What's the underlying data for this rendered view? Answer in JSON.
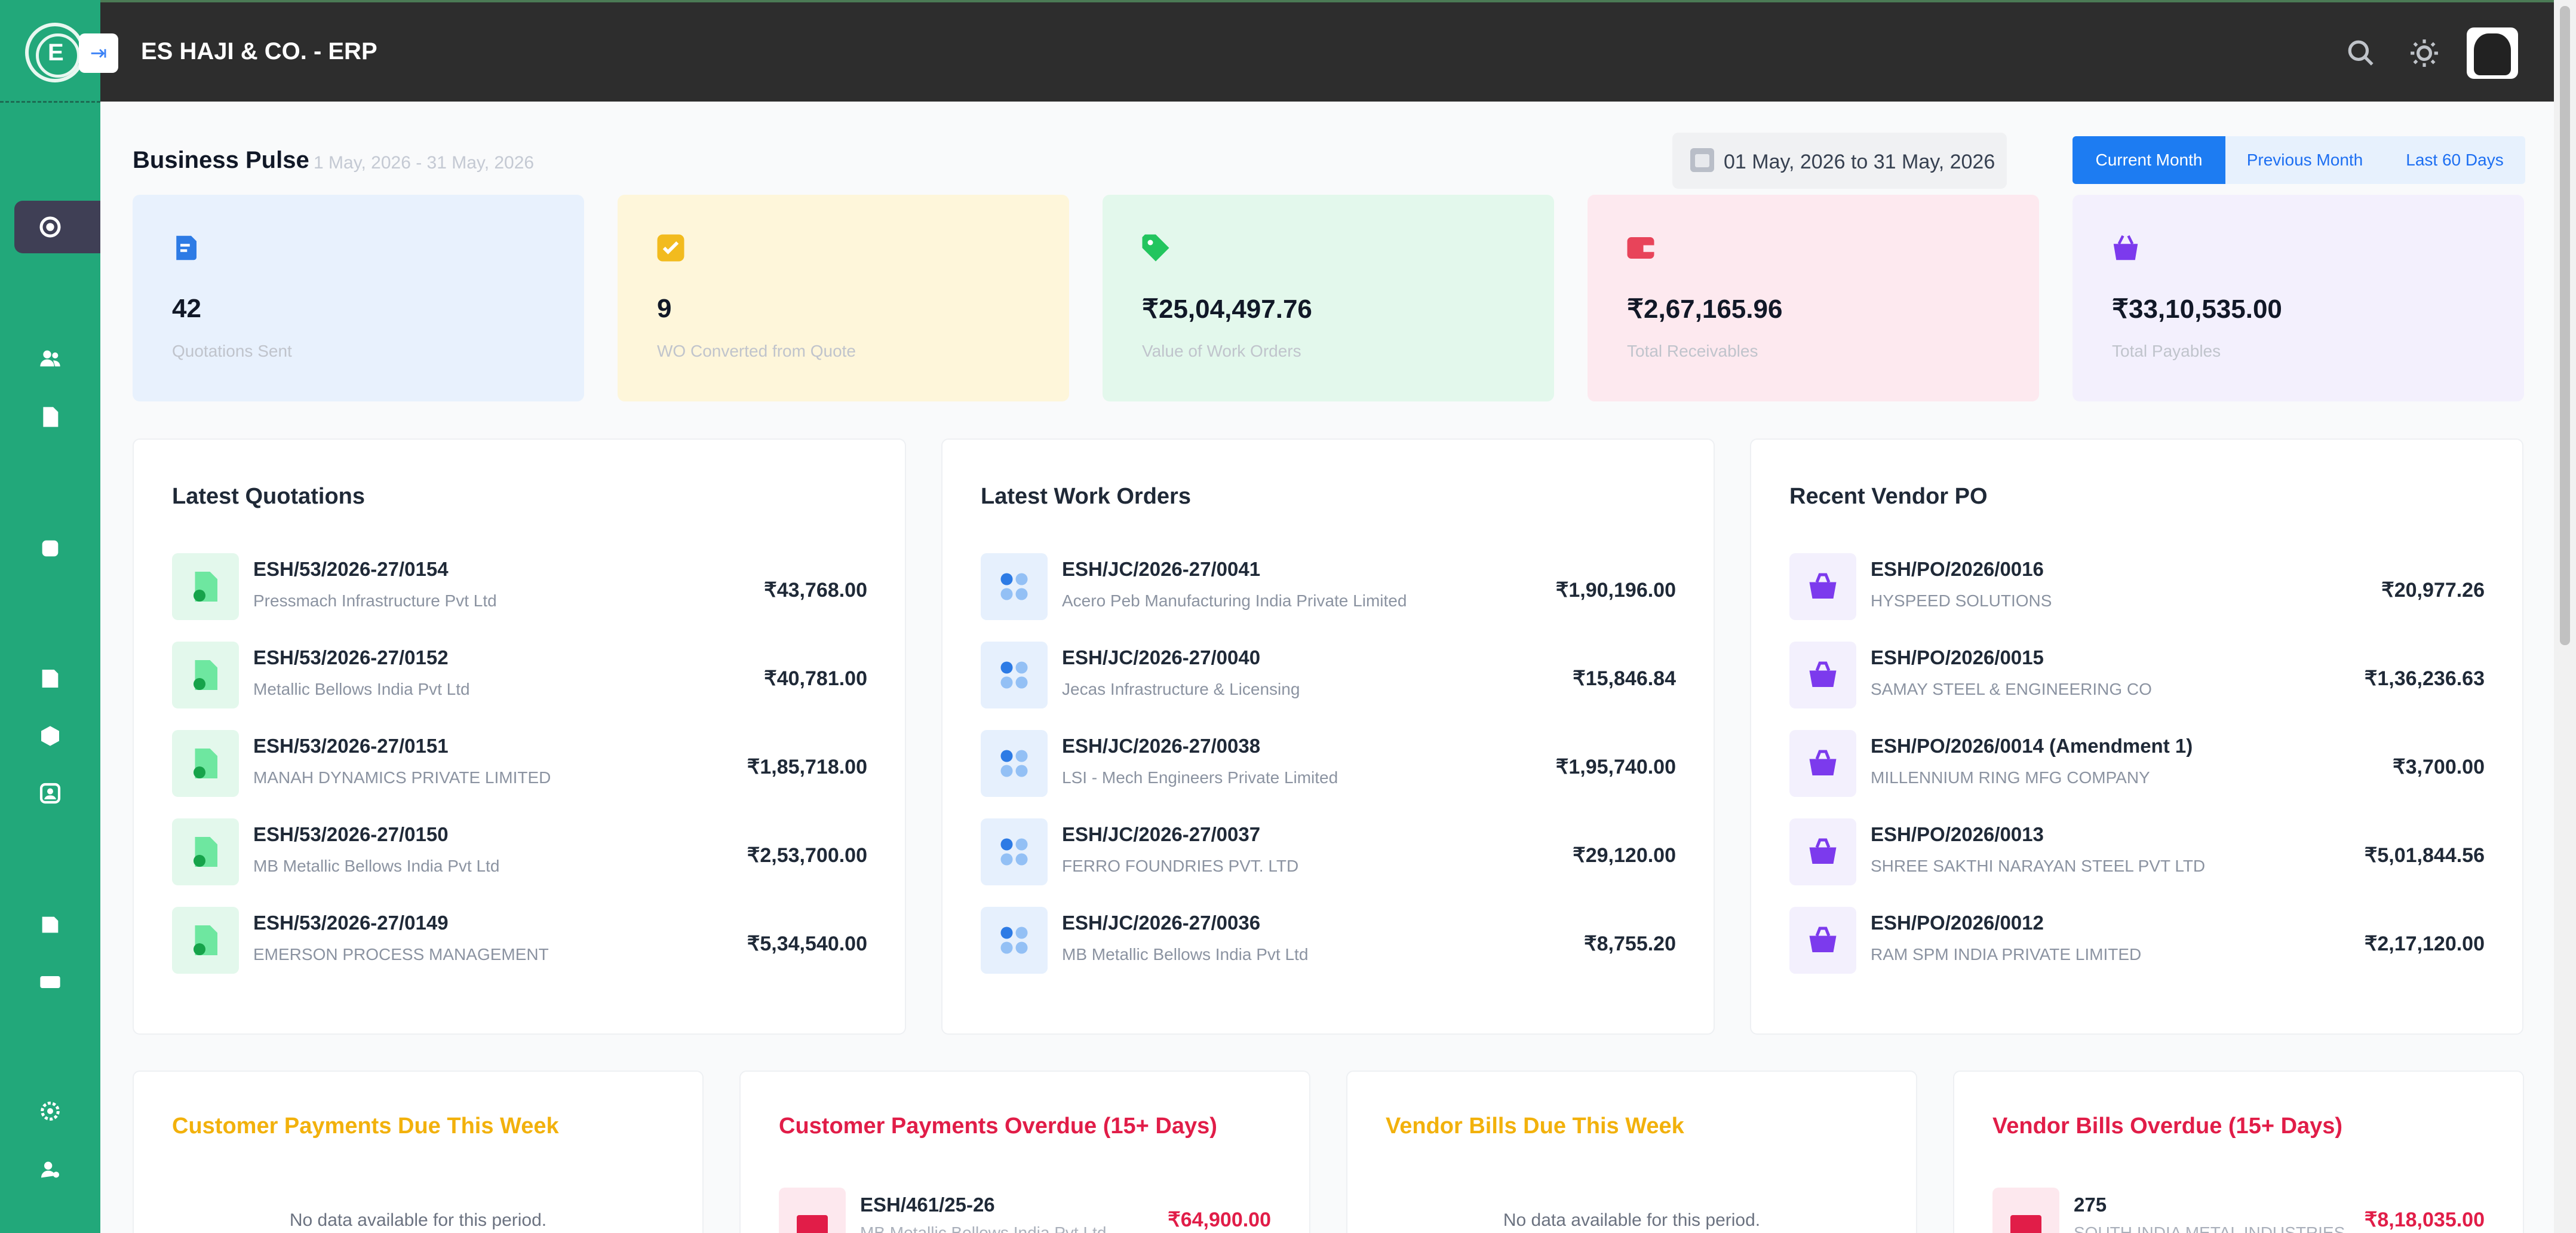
{
  "app": {
    "title": "ES HAJI & CO. - ERP"
  },
  "pulse": {
    "title": "Business Pulse",
    "range": "1 May, 2026 - 31 May, 2026",
    "date_filter": "01 May, 2026 to 31 May, 2026",
    "periods": [
      "Current Month",
      "Previous Month",
      "Last 60 Days"
    ],
    "active_period": "Current Month"
  },
  "stats": [
    {
      "value": "42",
      "label": "Quotations Sent",
      "icon": "quotation-icon",
      "bg": "#e8f1fd",
      "accent": "#2d7be5"
    },
    {
      "value": "9",
      "label": "WO Converted from Quote",
      "icon": "checkbox-icon",
      "bg": "#fef6da",
      "accent": "#f2bb1e"
    },
    {
      "value": "₹25,04,497.76",
      "label": "Value of Work Orders",
      "icon": "tag-icon",
      "bg": "#e3f8ec",
      "accent": "#22c55e"
    },
    {
      "value": "₹2,67,165.96",
      "label": "Total Receivables",
      "icon": "wallet-icon",
      "bg": "#fde9ef",
      "accent": "#e8445a"
    },
    {
      "value": "₹33,10,535.00",
      "label": "Total Payables",
      "icon": "basket-icon",
      "bg": "#f3f0fd",
      "accent": "#7c3aed"
    }
  ],
  "quotations": {
    "title": "Latest Quotations",
    "items": [
      {
        "code": "ESH/53/2026-27/0154",
        "party": "Pressmach Infrastructure Pvt Ltd",
        "amount": "₹43,768.00"
      },
      {
        "code": "ESH/53/2026-27/0152",
        "party": "Metallic Bellows India Pvt Ltd",
        "amount": "₹40,781.00"
      },
      {
        "code": "ESH/53/2026-27/0151",
        "party": "MANAH DYNAMICS PRIVATE LIMITED",
        "amount": "₹1,85,718.00"
      },
      {
        "code": "ESH/53/2026-27/0150",
        "party": "MB Metallic Bellows India Pvt Ltd",
        "amount": "₹2,53,700.00"
      },
      {
        "code": "ESH/53/2026-27/0149",
        "party": "EMERSON PROCESS MANAGEMENT",
        "amount": "₹5,34,540.00"
      }
    ]
  },
  "work_orders": {
    "title": "Latest Work Orders",
    "items": [
      {
        "code": "ESH/JC/2026-27/0041",
        "party": "Acero Peb Manufacturing India Private Limited",
        "amount": "₹1,90,196.00"
      },
      {
        "code": "ESH/JC/2026-27/0040",
        "party": "Jecas Infrastructure & Licensing",
        "amount": "₹15,846.84"
      },
      {
        "code": "ESH/JC/2026-27/0038",
        "party": "LSI - Mech Engineers Private Limited",
        "amount": "₹1,95,740.00"
      },
      {
        "code": "ESH/JC/2026-27/0037",
        "party": "FERRO FOUNDRIES PVT. LTD",
        "amount": "₹29,120.00"
      },
      {
        "code": "ESH/JC/2026-27/0036",
        "party": "MB Metallic Bellows India Pvt Ltd",
        "amount": "₹8,755.20"
      }
    ]
  },
  "vendor_po": {
    "title": "Recent Vendor PO",
    "items": [
      {
        "code": "ESH/PO/2026/0016",
        "party": "HYSPEED SOLUTIONS",
        "amount": "₹20,977.26"
      },
      {
        "code": "ESH/PO/2026/0015",
        "party": "SAMAY STEEL & ENGINEERING CO",
        "amount": "₹1,36,236.63"
      },
      {
        "code": "ESH/PO/2026/0014 (Amendment 1)",
        "party": "MILLENNIUM RING MFG COMPANY",
        "amount": "₹3,700.00"
      },
      {
        "code": "ESH/PO/2026/0013",
        "party": "SHREE SAKTHI NARAYAN STEEL PVT LTD",
        "amount": "₹5,01,844.56"
      },
      {
        "code": "ESH/PO/2026/0012",
        "party": "RAM SPM INDIA PRIVATE LIMITED",
        "amount": "₹2,17,120.00"
      }
    ]
  },
  "due_cards": [
    {
      "title": "Customer Payments Due This Week",
      "color": "#f2b10c",
      "no_data": "No data available for this period."
    },
    {
      "title": "Customer Payments Overdue (15+ Days)",
      "color": "#e11d48",
      "code": "ESH/461/25-26",
      "party": "MB Metallic Bellows India Pvt Ltd",
      "amount": "₹64,900.00"
    },
    {
      "title": "Vendor Bills Due This Week",
      "color": "#f2b10c",
      "no_data": "No data available for this period."
    },
    {
      "title": "Vendor Bills Overdue (15+ Days)",
      "color": "#e11d48",
      "code": "275",
      "party": "SOUTH INDIA METAL INDUSTRIES",
      "amount": "₹8,18,035.00"
    }
  ]
}
